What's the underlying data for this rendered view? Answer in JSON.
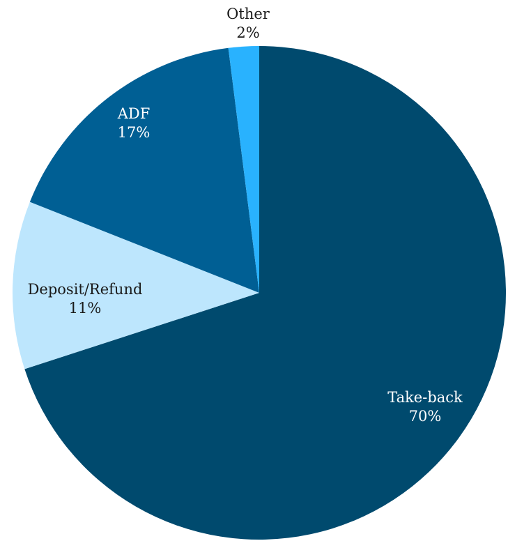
{
  "chart_data": {
    "type": "pie",
    "categories": [
      "Take-back",
      "Deposit/Refund",
      "ADF",
      "Other"
    ],
    "values": [
      70,
      11,
      17,
      2
    ],
    "labels": [
      {
        "name": "Take-back",
        "pct": "70%"
      },
      {
        "name": "Deposit/Refund",
        "pct": "11%"
      },
      {
        "name": "ADF",
        "pct": "17%"
      },
      {
        "name": "Other",
        "pct": "2%"
      }
    ],
    "colors": [
      "#004a6e",
      "#bde6fd",
      "#005f94",
      "#29b2fe"
    ],
    "label_colors": [
      "#ffffff",
      "#1a1a1a",
      "#ffffff",
      "#1a1a1a"
    ],
    "start": "12 o'clock",
    "direction": "clockwise"
  }
}
